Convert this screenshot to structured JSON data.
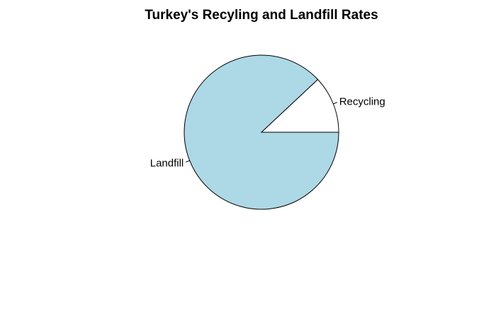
{
  "chart_data": {
    "type": "pie",
    "title": "Turkey's Recyling and Landfill Rates",
    "slices": [
      {
        "label": "Recycling",
        "value": 12,
        "color": "#ffffff"
      },
      {
        "label": "Landfill",
        "value": 88,
        "color": "#add8e6"
      }
    ],
    "start_angle_deg": 0,
    "direction": "counterclockwise",
    "border_color": "#000000"
  }
}
